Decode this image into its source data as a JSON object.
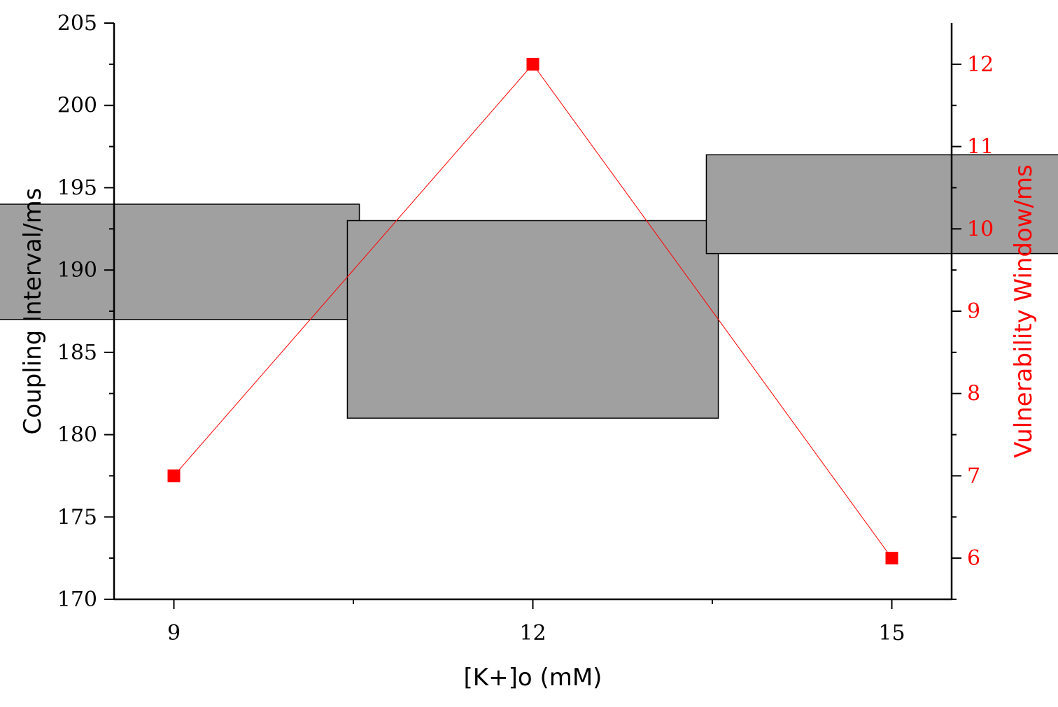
{
  "chart_data": {
    "type": "box-line-dual-axis",
    "x": {
      "label": "[K+]o (mM)",
      "ticks": [
        9,
        12,
        15
      ],
      "range": [
        8.5,
        15.5
      ]
    },
    "y_left": {
      "label": "Coupling Interval/ms",
      "ticks": [
        170,
        175,
        180,
        185,
        190,
        195,
        200,
        205
      ],
      "range": [
        170,
        205
      ]
    },
    "y_right": {
      "label": "Vulnerability Window/ms",
      "ticks": [
        6,
        7,
        8,
        9,
        10,
        11,
        12
      ],
      "range": [
        5.5,
        12.5
      ],
      "color": "#ff0000"
    },
    "bars": [
      {
        "x": 9,
        "low": 187,
        "high": 194
      },
      {
        "x": 12,
        "low": 181,
        "high": 193
      },
      {
        "x": 15,
        "low": 191,
        "high": 197
      }
    ],
    "bar_color": "#a0a0a0",
    "line": {
      "x": [
        9,
        12,
        15
      ],
      "y": [
        7,
        12,
        6
      ],
      "color": "#ff0000",
      "marker": "square"
    },
    "grid": false
  }
}
